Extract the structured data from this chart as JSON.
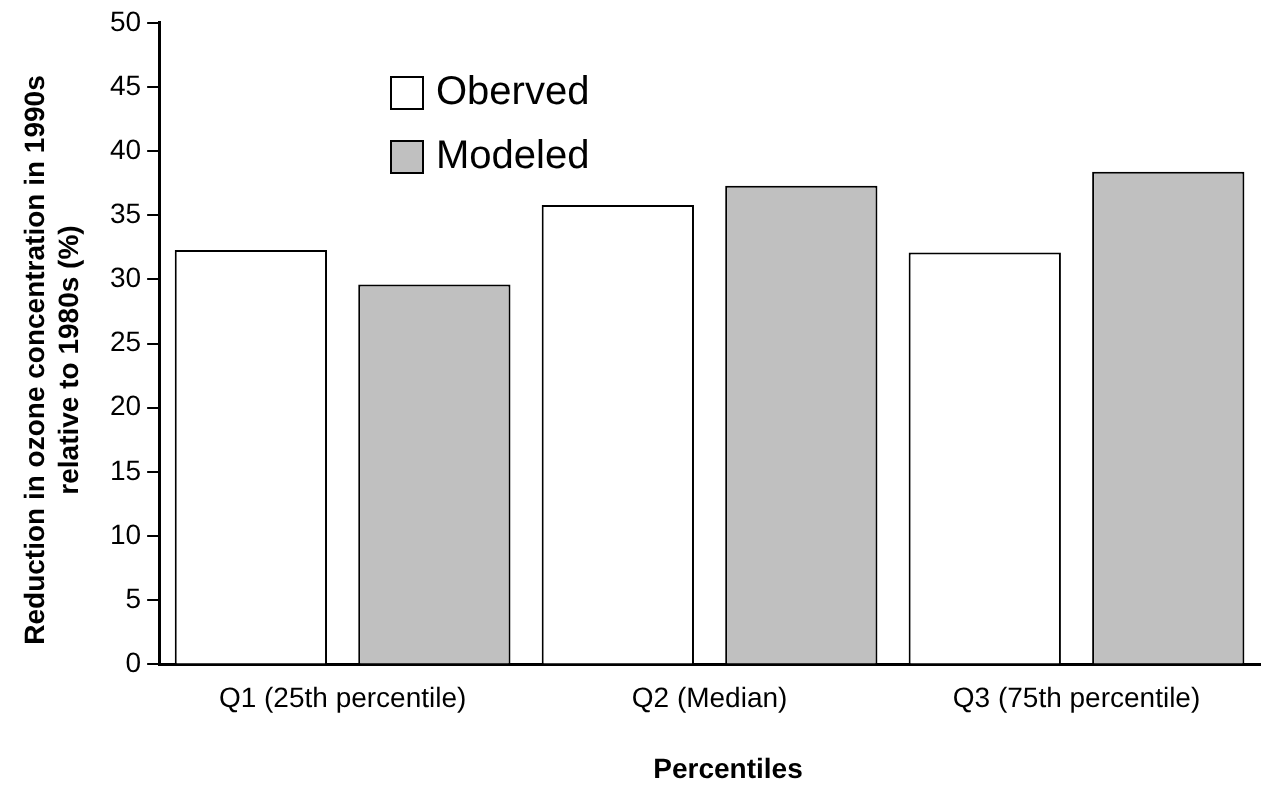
{
  "chart_data": {
    "type": "bar",
    "xlabel": "Percentiles",
    "ylabel": "Reduction in ozone concentration in 1990s relative  to 1980s (%)",
    "categories": [
      "Q1 (25th percentile)",
      "Q2 (Median)",
      "Q3 (75th percentile)"
    ],
    "series": [
      {
        "name": "Oberved",
        "color": "#ffffff",
        "values": [
          32.3,
          35.8,
          32.1
        ]
      },
      {
        "name": "Modeled",
        "color": "#c0c0c0",
        "values": [
          29.6,
          37.3,
          38.4
        ]
      }
    ],
    "ylim": [
      0,
      50
    ],
    "yticks": [
      0,
      5,
      10,
      15,
      20,
      25,
      30,
      35,
      40,
      45,
      50
    ],
    "grid": false,
    "legend": "top left"
  }
}
